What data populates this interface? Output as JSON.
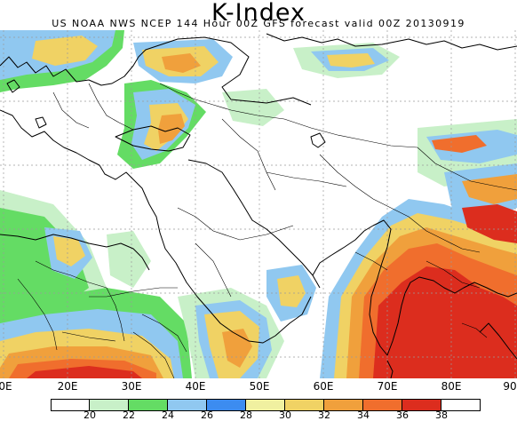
{
  "title": "K-Index",
  "subtitle": "US NOAA NWS NCEP 144 Hour 00Z GFS forecast valid 00Z 20130919",
  "x_axis_labels": [
    "0E",
    "20E",
    "30E",
    "40E",
    "50E",
    "60E",
    "70E",
    "80E",
    "90"
  ],
  "legend": {
    "labels": [
      "20",
      "22",
      "24",
      "26",
      "28",
      "30",
      "32",
      "34",
      "36",
      "38"
    ],
    "colors": [
      "#ffffff",
      "#c8f0c8",
      "#64dc64",
      "#90c8f0",
      "#3c8cf0",
      "#f0f0a0",
      "#f0d264",
      "#f0a03c",
      "#f06e2d",
      "#dc2d1e"
    ]
  },
  "map": {
    "projection": "lat-lon",
    "region": "Europe, Middle East, South Asia",
    "features": [
      "coastlines",
      "country-borders",
      "graticule-dashed"
    ]
  }
}
